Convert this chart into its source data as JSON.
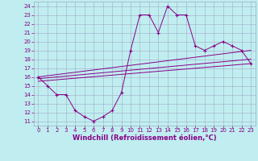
{
  "title": "",
  "xlabel": "Windchill (Refroidissement éolien,°C)",
  "bg_color": "#c0eef0",
  "grid_color": "#a0a8c8",
  "line_color": "#880088",
  "xlim": [
    -0.5,
    23.5
  ],
  "ylim": [
    10.5,
    24.5
  ],
  "xticks": [
    0,
    1,
    2,
    3,
    4,
    5,
    6,
    7,
    8,
    9,
    10,
    11,
    12,
    13,
    14,
    15,
    16,
    17,
    18,
    19,
    20,
    21,
    22,
    23
  ],
  "yticks": [
    11,
    12,
    13,
    14,
    15,
    16,
    17,
    18,
    19,
    20,
    21,
    22,
    23,
    24
  ],
  "main_line": {
    "x": [
      0,
      1,
      2,
      3,
      4,
      5,
      6,
      7,
      8,
      9,
      10,
      11,
      12,
      13,
      14,
      15,
      16,
      17,
      18,
      19,
      20,
      21,
      22,
      23
    ],
    "y": [
      16.0,
      15.0,
      14.0,
      14.0,
      12.2,
      11.5,
      11.0,
      11.5,
      12.2,
      14.2,
      19.0,
      23.0,
      23.0,
      21.0,
      24.0,
      23.0,
      23.0,
      19.5,
      19.0,
      19.5,
      20.0,
      19.5,
      19.0,
      17.5
    ]
  },
  "line2": {
    "x": [
      0,
      23
    ],
    "y": [
      16.0,
      19.0
    ]
  },
  "line3": {
    "x": [
      0,
      23
    ],
    "y": [
      15.8,
      18.0
    ]
  },
  "line4": {
    "x": [
      0,
      23
    ],
    "y": [
      15.5,
      17.5
    ]
  },
  "figsize": [
    3.2,
    2.0
  ],
  "dpi": 100,
  "font_color": "#880088",
  "tick_fontsize": 5.0,
  "xlabel_fontsize": 6.0
}
